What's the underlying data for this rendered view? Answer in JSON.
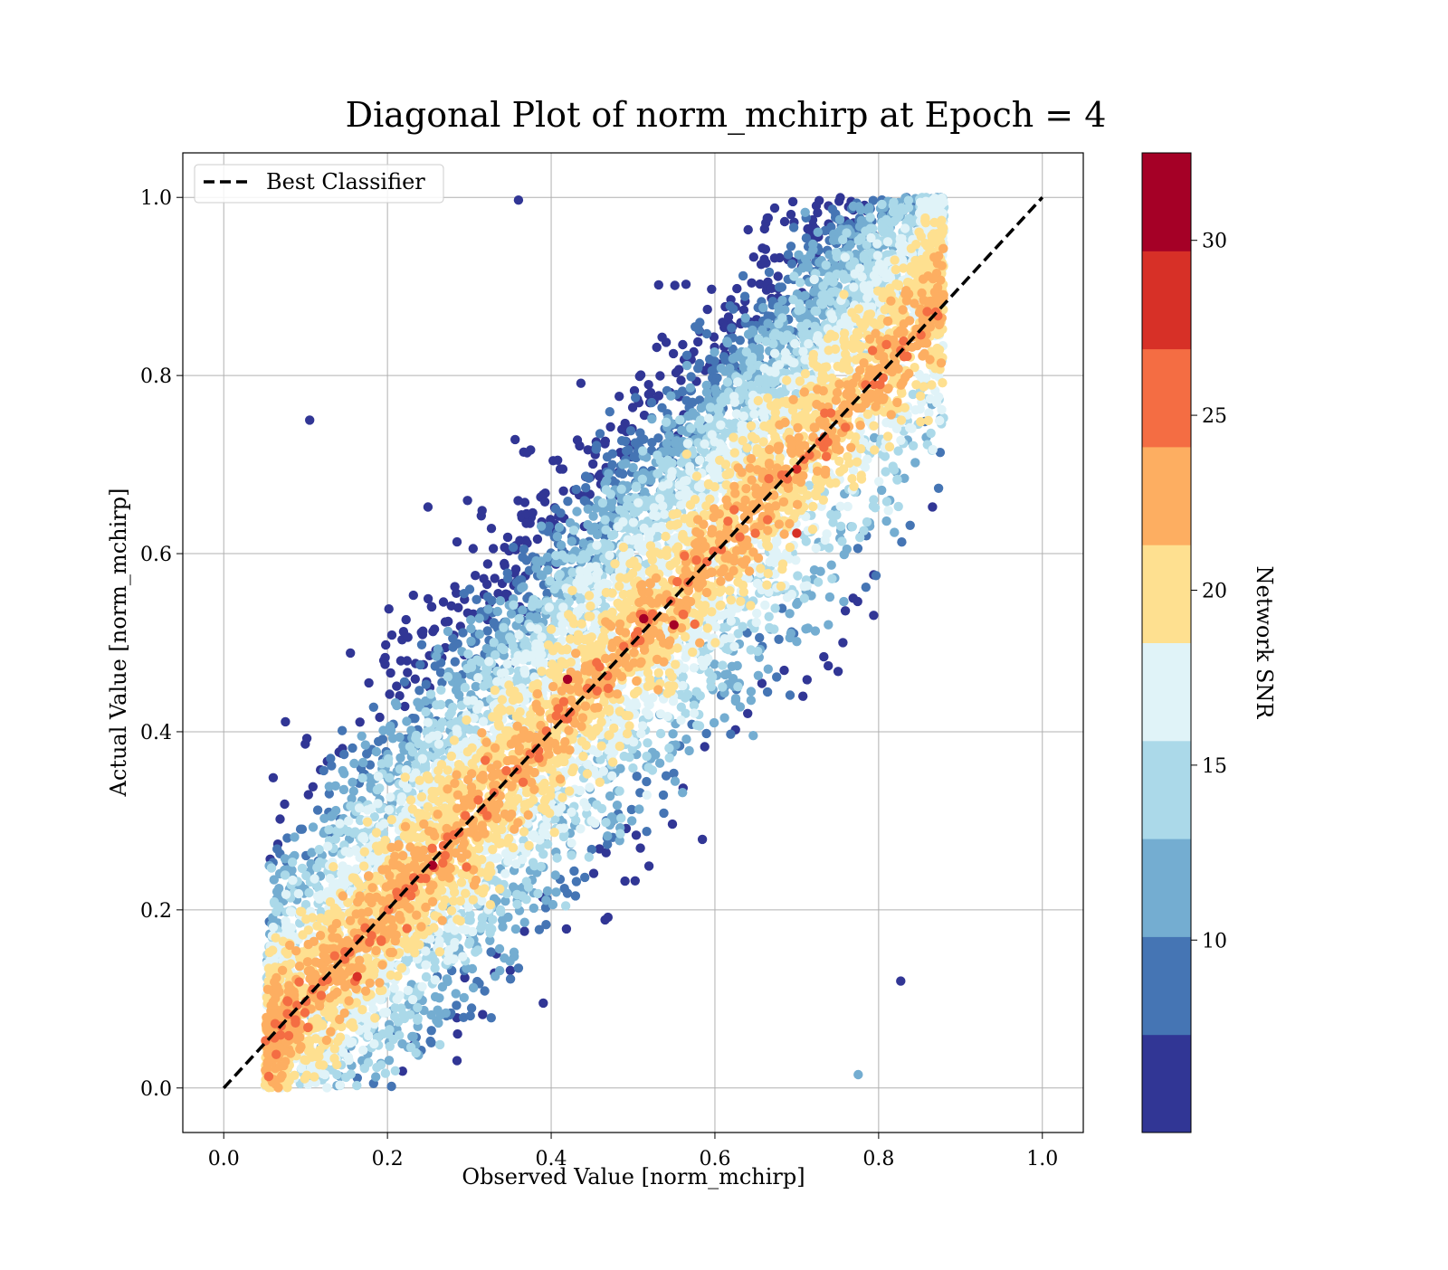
{
  "chart_data": {
    "type": "scatter",
    "title": "Diagonal Plot of norm_mchirp at Epoch = 4",
    "xlabel": "Observed Value [norm_mchirp]",
    "ylabel": "Actual Value [norm_mchirp]",
    "xlim": [
      -0.05,
      1.05
    ],
    "ylim": [
      -0.05,
      1.05
    ],
    "xticks": [
      "0.0",
      "0.2",
      "0.4",
      "0.6",
      "0.8",
      "1.0"
    ],
    "yticks": [
      "0.0",
      "0.2",
      "0.4",
      "0.6",
      "0.8",
      "1.0"
    ],
    "grid": true,
    "legend": {
      "position": "top-left",
      "entries": [
        "Best Classifier"
      ]
    },
    "reference_line": {
      "name": "Best Classifier",
      "x": [
        0,
        1
      ],
      "y": [
        0,
        1
      ],
      "style": "dashed",
      "color": "#000000"
    },
    "colorbar": {
      "label": "Network SNR",
      "range": [
        4.5,
        32.5
      ],
      "ticks": [
        "10",
        "15",
        "20",
        "25",
        "30"
      ],
      "tick_values": [
        10,
        15,
        20,
        25,
        30
      ],
      "colors": [
        "#313695",
        "#4575b4",
        "#74add1",
        "#abd9e9",
        "#e0f3f8",
        "#fee090",
        "#fdae61",
        "#f46d43",
        "#d73027",
        "#a50026"
      ]
    },
    "point_summary": [
      {
        "snr_range": "<9",
        "color": "#313695",
        "region": "upper-left and lower-right far from diagonal"
      },
      {
        "snr_range": "9-15",
        "color": "#4575b4",
        "region": "broad off-diagonal band"
      },
      {
        "snr_range": "15-20",
        "color": "#e0f3f8",
        "region": "near diagonal"
      },
      {
        "snr_range": ">20",
        "color": "#f46d43",
        "region": "tight around diagonal"
      }
    ],
    "highlighted_points": [
      {
        "x": 0.513,
        "y": 0.527,
        "snr": 32
      },
      {
        "x": 0.42,
        "y": 0.459,
        "snr": 31
      },
      {
        "x": 0.255,
        "y": 0.25,
        "snr": 31
      },
      {
        "x": 0.7,
        "y": 0.695,
        "snr": 29
      },
      {
        "x": 0.7,
        "y": 0.623,
        "snr": 29
      },
      {
        "x": 0.55,
        "y": 0.52,
        "snr": 30
      },
      {
        "x": 0.163,
        "y": 0.125,
        "snr": 27
      },
      {
        "x": 0.827,
        "y": 0.12,
        "snr": 5
      },
      {
        "x": 0.105,
        "y": 0.75,
        "snr": 5
      },
      {
        "x": 0.775,
        "y": 0.015,
        "snr": 12
      },
      {
        "x": 0.36,
        "y": 0.997,
        "snr": 5
      },
      {
        "x": 0.055,
        "y": 0.013,
        "snr": 26
      }
    ]
  }
}
